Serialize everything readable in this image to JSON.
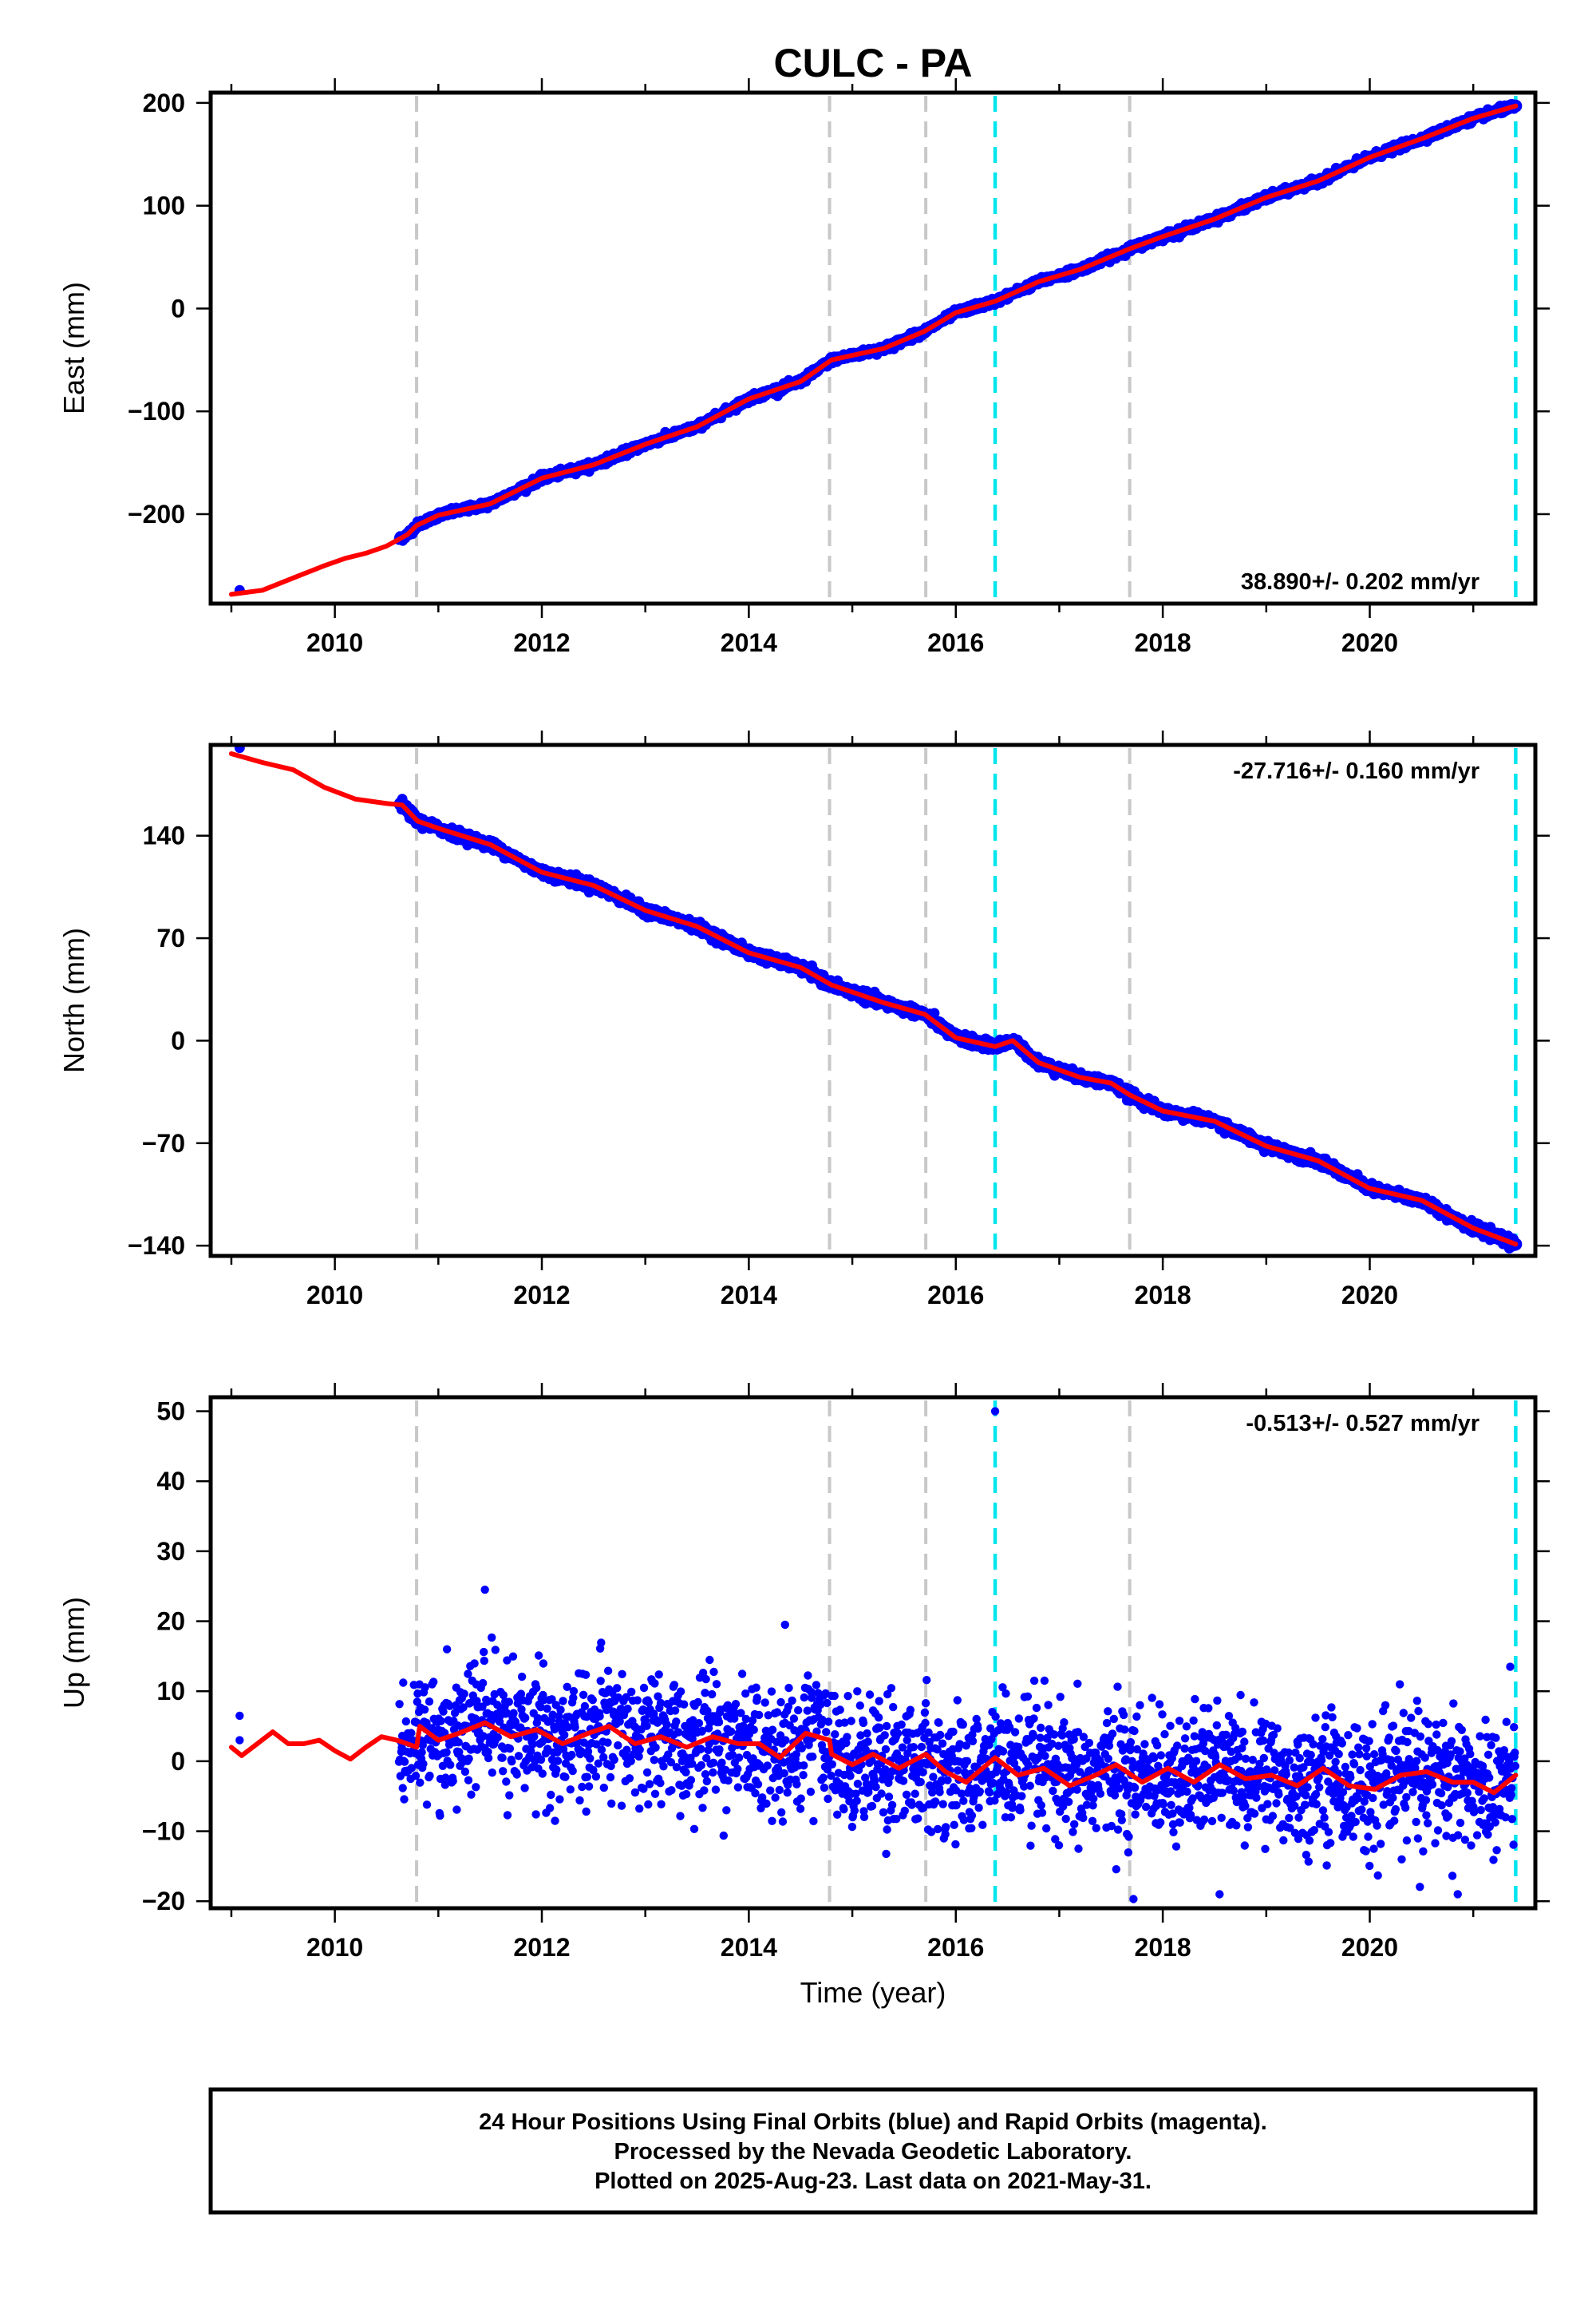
{
  "title": "CULC - PA",
  "footer": {
    "line1": "24 Hour Positions Using Final Orbits (blue) and Rapid Orbits (magenta).",
    "line2": "Processed by the Nevada Geodetic Laboratory.",
    "line3": "Plotted on 2025-Aug-23. Last data on 2021-May-31."
  },
  "colors": {
    "final_orbits": "#0000ff",
    "model": "#ff0000",
    "event_gray": "#c8c8c8",
    "event_cyan": "#00e5ee"
  },
  "chart_data": [
    {
      "type": "scatter",
      "ylabel": "East (mm)",
      "xlabel": "",
      "xlim": [
        2008.8,
        2021.6
      ],
      "ylim": [
        -287,
        210
      ],
      "xticks": [
        2010,
        2012,
        2014,
        2016,
        2018,
        2020
      ],
      "xtick_labels": [
        "2010",
        "2012",
        "2014",
        "2016",
        "2018",
        "2020"
      ],
      "yticks": [
        -200,
        -100,
        0,
        100,
        200
      ],
      "ytick_labels": [
        "−200",
        "−100",
        "0",
        "100",
        "200"
      ],
      "rate_text": "38.890+/- 0.202 mm/yr",
      "rate_position": "bottom-right",
      "gray_events": [
        2010.79,
        2014.78,
        2015.71,
        2017.68
      ],
      "cyan_events": [
        2016.38,
        2021.41
      ],
      "series": [
        {
          "kind": "model",
          "points": [
            [
              2009.0,
              -278
            ],
            [
              2009.3,
              -274
            ],
            [
              2009.6,
              -262
            ],
            [
              2009.9,
              -250
            ],
            [
              2010.1,
              -243
            ],
            [
              2010.3,
              -238
            ],
            [
              2010.5,
              -231
            ],
            [
              2010.7,
              -220
            ],
            [
              2010.79,
              -211
            ],
            [
              2011.0,
              -201
            ],
            [
              2011.5,
              -190
            ],
            [
              2012.0,
              -165
            ],
            [
              2012.5,
              -152
            ],
            [
              2013.0,
              -132
            ],
            [
              2013.5,
              -115
            ],
            [
              2014.0,
              -88
            ],
            [
              2014.5,
              -71
            ],
            [
              2014.8,
              -50
            ],
            [
              2015.3,
              -39
            ],
            [
              2015.7,
              -22
            ],
            [
              2016.0,
              -4
            ],
            [
              2016.38,
              7
            ],
            [
              2016.8,
              26
            ],
            [
              2017.2,
              38
            ],
            [
              2017.68,
              58
            ],
            [
              2018.0,
              70
            ],
            [
              2018.5,
              87
            ],
            [
              2019.0,
              108
            ],
            [
              2019.5,
              124
            ],
            [
              2020.0,
              147
            ],
            [
              2020.5,
              165
            ],
            [
              2021.0,
              185
            ],
            [
              2021.41,
              197
            ]
          ]
        }
      ]
    },
    {
      "type": "scatter",
      "ylabel": "North (mm)",
      "xlabel": "",
      "xlim": [
        2008.8,
        2021.6
      ],
      "ylim": [
        -147,
        202
      ],
      "xticks": [
        2010,
        2012,
        2014,
        2016,
        2018,
        2020
      ],
      "xtick_labels": [
        "2010",
        "2012",
        "2014",
        "2016",
        "2018",
        "2020"
      ],
      "yticks": [
        -140,
        -70,
        0,
        70,
        140
      ],
      "ytick_labels": [
        "−140",
        "−70",
        "0",
        "70",
        "140"
      ],
      "rate_text": "-27.716+/- 0.160 mm/yr",
      "rate_position": "top-right",
      "gray_events": [
        2010.79,
        2014.78,
        2015.71,
        2017.68
      ],
      "cyan_events": [
        2016.38,
        2021.41
      ],
      "series": [
        {
          "kind": "model",
          "points": [
            [
              2009.0,
              196
            ],
            [
              2009.3,
              190
            ],
            [
              2009.6,
              185
            ],
            [
              2009.9,
              173
            ],
            [
              2010.2,
              165
            ],
            [
              2010.5,
              162
            ],
            [
              2010.65,
              161
            ],
            [
              2010.8,
              150
            ],
            [
              2011.0,
              145
            ],
            [
              2011.5,
              134
            ],
            [
              2012.0,
              115
            ],
            [
              2012.5,
              106
            ],
            [
              2013.0,
              89
            ],
            [
              2013.5,
              78
            ],
            [
              2014.0,
              60
            ],
            [
              2014.5,
              50
            ],
            [
              2014.8,
              38
            ],
            [
              2015.3,
              26
            ],
            [
              2015.7,
              18
            ],
            [
              2016.0,
              2
            ],
            [
              2016.38,
              -4
            ],
            [
              2016.55,
              0
            ],
            [
              2016.8,
              -15
            ],
            [
              2017.2,
              -25
            ],
            [
              2017.5,
              -29
            ],
            [
              2017.68,
              -37
            ],
            [
              2018.0,
              -48
            ],
            [
              2018.5,
              -55
            ],
            [
              2019.0,
              -72
            ],
            [
              2019.5,
              -82
            ],
            [
              2020.0,
              -101
            ],
            [
              2020.5,
              -109
            ],
            [
              2021.0,
              -128
            ],
            [
              2021.41,
              -139
            ]
          ]
        }
      ]
    },
    {
      "type": "scatter",
      "ylabel": "Up (mm)",
      "xlabel": "Time (year)",
      "xlim": [
        2008.8,
        2021.6
      ],
      "ylim": [
        -21,
        52
      ],
      "xticks": [
        2010,
        2012,
        2014,
        2016,
        2018,
        2020
      ],
      "xtick_labels": [
        "2010",
        "2012",
        "2014",
        "2016",
        "2018",
        "2020"
      ],
      "yticks": [
        -20,
        -10,
        0,
        10,
        20,
        30,
        40,
        50
      ],
      "ytick_labels": [
        "−20",
        "−10",
        "0",
        "10",
        "20",
        "30",
        "40",
        "50"
      ],
      "rate_text": "-0.513+/- 0.527 mm/yr",
      "rate_position": "top-right",
      "gray_events": [
        2010.79,
        2014.78,
        2015.71,
        2017.68
      ],
      "cyan_events": [
        2016.38,
        2021.41
      ],
      "series": [
        {
          "kind": "model",
          "points": [
            [
              2009.0,
              2
            ],
            [
              2009.1,
              0.8
            ],
            [
              2009.25,
              2.5
            ],
            [
              2009.4,
              4.2
            ],
            [
              2009.55,
              2.5
            ],
            [
              2009.7,
              2.5
            ],
            [
              2009.85,
              3
            ],
            [
              2010.0,
              1.5
            ],
            [
              2010.15,
              0.3
            ],
            [
              2010.3,
              2
            ],
            [
              2010.45,
              3.5
            ],
            [
              2010.6,
              3
            ],
            [
              2010.7,
              2.5
            ],
            [
              2010.79,
              2
            ],
            [
              2010.82,
              5
            ],
            [
              2011.0,
              3
            ],
            [
              2011.2,
              4
            ],
            [
              2011.45,
              5.5
            ],
            [
              2011.7,
              3.5
            ],
            [
              2011.95,
              4.5
            ],
            [
              2012.2,
              2.5
            ],
            [
              2012.45,
              4
            ],
            [
              2012.65,
              5
            ],
            [
              2012.9,
              2.5
            ],
            [
              2013.15,
              3.5
            ],
            [
              2013.4,
              2
            ],
            [
              2013.65,
              3.5
            ],
            [
              2013.9,
              2.5
            ],
            [
              2014.1,
              2.5
            ],
            [
              2014.3,
              0.5
            ],
            [
              2014.55,
              4
            ],
            [
              2014.78,
              3
            ],
            [
              2014.8,
              1
            ],
            [
              2015.0,
              -0.5
            ],
            [
              2015.2,
              1
            ],
            [
              2015.45,
              -1
            ],
            [
              2015.71,
              1
            ],
            [
              2015.9,
              -1.5
            ],
            [
              2016.1,
              -3
            ],
            [
              2016.38,
              0.5
            ],
            [
              2016.6,
              -2
            ],
            [
              2016.85,
              -1
            ],
            [
              2017.1,
              -3.5
            ],
            [
              2017.35,
              -2
            ],
            [
              2017.55,
              -0.5
            ],
            [
              2017.8,
              -3
            ],
            [
              2018.05,
              -1
            ],
            [
              2018.3,
              -3
            ],
            [
              2018.55,
              -0.5
            ],
            [
              2018.8,
              -2.5
            ],
            [
              2019.05,
              -2
            ],
            [
              2019.3,
              -3.5
            ],
            [
              2019.55,
              -1
            ],
            [
              2019.8,
              -3.5
            ],
            [
              2020.05,
              -4
            ],
            [
              2020.3,
              -2
            ],
            [
              2020.55,
              -1.5
            ],
            [
              2020.8,
              -3
            ],
            [
              2021.0,
              -3
            ],
            [
              2021.2,
              -4.5
            ],
            [
              2021.41,
              -2
            ]
          ]
        }
      ]
    }
  ]
}
